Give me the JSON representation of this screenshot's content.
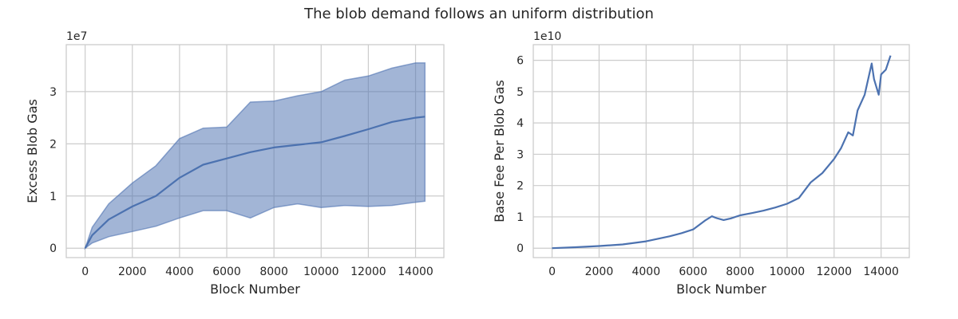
{
  "figure": {
    "suptitle": "The blob demand follows an uniform distribution"
  },
  "chart_data": [
    {
      "type": "area",
      "xlabel": "Block Number",
      "ylabel": "Excess Blob Gas",
      "offset_text": "1e7",
      "xlim": [
        -800,
        15200
      ],
      "ylim": [
        -0.18,
        3.9
      ],
      "xticks": [
        0,
        2000,
        4000,
        6000,
        8000,
        10000,
        12000,
        14000
      ],
      "yticks": [
        0,
        1,
        2,
        3
      ],
      "grid": true,
      "colors": {
        "line": "#4c72b0",
        "band": "#4c72b0"
      },
      "series": [
        {
          "x": [
            0,
            300,
            1000,
            2000,
            3000,
            4000,
            5000,
            6000,
            7000,
            8000,
            9000,
            10000,
            11000,
            12000,
            13000,
            14000,
            14400
          ],
          "values": [
            0.0,
            0.25,
            0.55,
            0.8,
            1.0,
            1.35,
            1.6,
            1.72,
            1.84,
            1.93,
            1.98,
            2.03,
            2.15,
            2.28,
            2.42,
            2.5,
            2.52
          ],
          "lower": [
            0.0,
            0.1,
            0.22,
            0.32,
            0.42,
            0.58,
            0.72,
            0.72,
            0.58,
            0.78,
            0.85,
            0.78,
            0.82,
            0.8,
            0.82,
            0.88,
            0.9
          ],
          "upper": [
            0.0,
            0.4,
            0.85,
            1.25,
            1.58,
            2.1,
            2.3,
            2.32,
            2.8,
            2.82,
            2.92,
            3.0,
            3.22,
            3.3,
            3.45,
            3.55,
            3.55
          ]
        }
      ]
    },
    {
      "type": "line",
      "xlabel": "Block Number",
      "ylabel": "Base Fee Per Blob Gas",
      "offset_text": "1e10",
      "xlim": [
        -800,
        15200
      ],
      "ylim": [
        -0.3,
        6.5
      ],
      "xticks": [
        0,
        2000,
        4000,
        6000,
        8000,
        10000,
        12000,
        14000
      ],
      "yticks": [
        0,
        1,
        2,
        3,
        4,
        5,
        6
      ],
      "grid": true,
      "colors": {
        "line": "#4c72b0"
      },
      "series": [
        {
          "x": [
            0,
            1000,
            2000,
            3000,
            4000,
            4500,
            5000,
            5500,
            6000,
            6500,
            6800,
            7000,
            7300,
            7600,
            8000,
            8500,
            9000,
            9500,
            10000,
            10500,
            11000,
            11500,
            12000,
            12300,
            12600,
            12800,
            13000,
            13300,
            13600,
            13700,
            13900,
            14000,
            14200,
            14400
          ],
          "values": [
            0.0,
            0.03,
            0.07,
            0.12,
            0.22,
            0.3,
            0.38,
            0.48,
            0.6,
            0.88,
            1.02,
            0.96,
            0.9,
            0.95,
            1.05,
            1.12,
            1.2,
            1.3,
            1.42,
            1.6,
            2.1,
            2.4,
            2.85,
            3.2,
            3.7,
            3.6,
            4.4,
            4.9,
            5.9,
            5.4,
            4.9,
            5.55,
            5.7,
            6.15
          ]
        }
      ]
    }
  ]
}
